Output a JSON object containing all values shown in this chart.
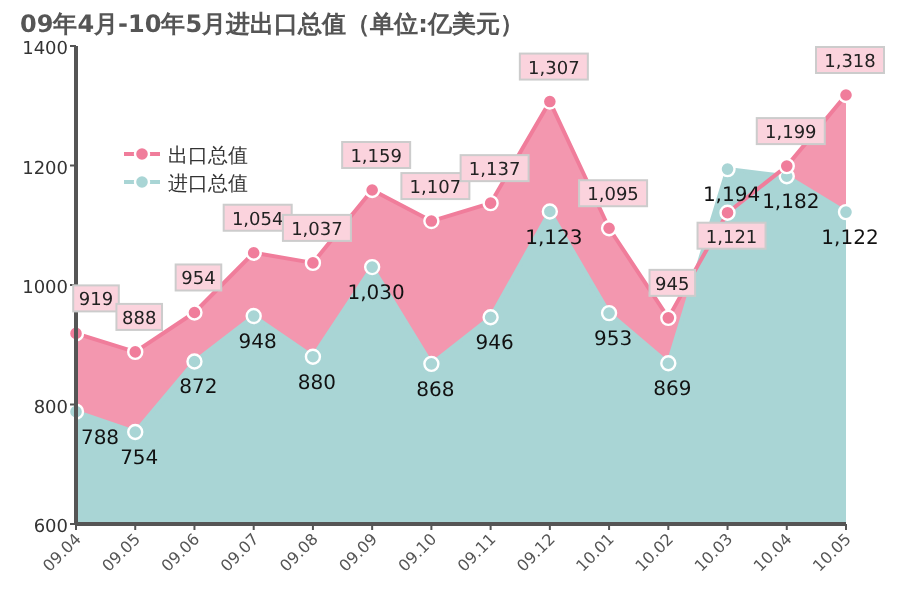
{
  "chart_data": {
    "type": "area",
    "title": "09年4月-10年5月进出口总值（单位:亿美元）",
    "categories": [
      "09.04",
      "09.05",
      "09.06",
      "09.07",
      "09.08",
      "09.09",
      "09.10",
      "09.11",
      "09.12",
      "10.01",
      "10.02",
      "10.03",
      "10.04",
      "10.05"
    ],
    "series": [
      {
        "name": "出口总值",
        "color": "#f07d9b",
        "values": [
          919,
          888,
          954,
          1054,
          1037,
          1159,
          1107,
          1137,
          1307,
          1095,
          945,
          1121,
          1199,
          1318
        ],
        "value_labels": [
          "919",
          "888",
          "954",
          "1,054",
          "1,037",
          "1,159",
          "1,107",
          "1,137",
          "1,307",
          "1,095",
          "945",
          "1,121",
          "1,199",
          "1,318"
        ]
      },
      {
        "name": "进口总值",
        "color": "#a9d5d5",
        "values": [
          788,
          754,
          872,
          948,
          880,
          1030,
          868,
          946,
          1123,
          953,
          869,
          1194,
          1182,
          1122
        ],
        "value_labels": [
          "788",
          "754",
          "872",
          "948",
          "880",
          "1,030",
          "868",
          "946",
          "1,123",
          "953",
          "869",
          "1,194",
          "1,182",
          "1,122"
        ]
      }
    ],
    "ylim": [
      600,
      1400
    ],
    "yticks": [
      600,
      800,
      1000,
      1200,
      1400
    ],
    "legend": "top left",
    "marker": "circle"
  }
}
